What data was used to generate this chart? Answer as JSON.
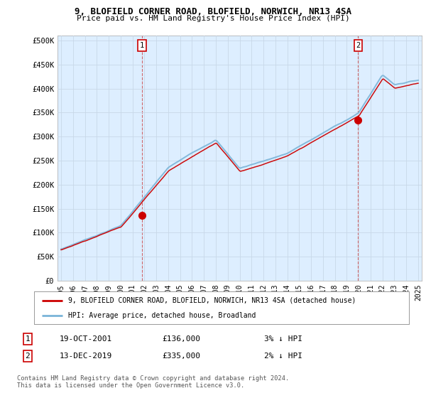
{
  "title1": "9, BLOFIELD CORNER ROAD, BLOFIELD, NORWICH, NR13 4SA",
  "title2": "Price paid vs. HM Land Registry's House Price Index (HPI)",
  "ylabel_ticks": [
    "£0",
    "£50K",
    "£100K",
    "£150K",
    "£200K",
    "£250K",
    "£300K",
    "£350K",
    "£400K",
    "£450K",
    "£500K"
  ],
  "ytick_vals": [
    0,
    50000,
    100000,
    150000,
    200000,
    250000,
    300000,
    350000,
    400000,
    450000,
    500000
  ],
  "ylim": [
    0,
    510000
  ],
  "xlim_start": 1994.7,
  "xlim_end": 2025.3,
  "hpi_color": "#7ab4d8",
  "price_color": "#cc0000",
  "chart_bg": "#ddeeff",
  "sale1_date": 2001.8,
  "sale1_price": 136000,
  "sale2_date": 2019.95,
  "sale2_price": 335000,
  "label1": "9, BLOFIELD CORNER ROAD, BLOFIELD, NORWICH, NR13 4SA (detached house)",
  "label2": "HPI: Average price, detached house, Broadland",
  "note1_num": "1",
  "note1_date": "19-OCT-2001",
  "note1_price": "£136,000",
  "note1_hpi": "3% ↓ HPI",
  "note2_num": "2",
  "note2_date": "13-DEC-2019",
  "note2_price": "£335,000",
  "note2_hpi": "2% ↓ HPI",
  "footer": "Contains HM Land Registry data © Crown copyright and database right 2024.\nThis data is licensed under the Open Government Licence v3.0.",
  "background_color": "#ffffff",
  "grid_color": "#c8d8e8"
}
